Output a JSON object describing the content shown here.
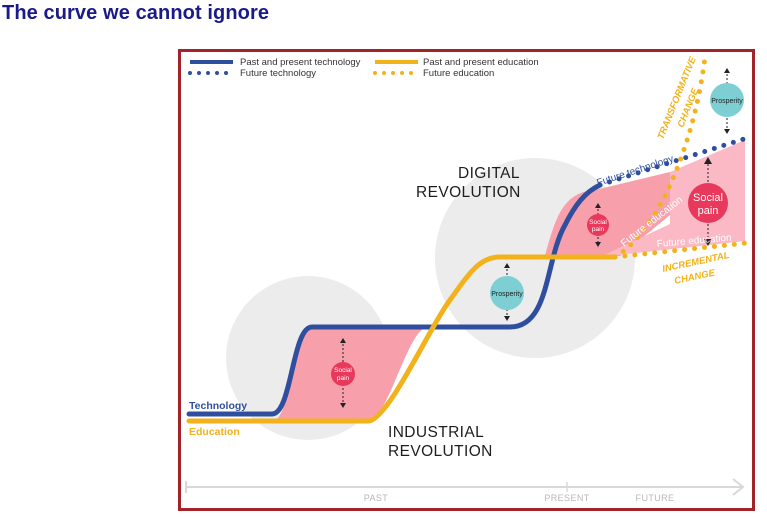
{
  "page": {
    "title": "The curve we cannot ignore"
  },
  "legend": {
    "past_tech": "Past and present technology",
    "future_tech": "Future technology",
    "past_edu": "Past and present education",
    "future_edu": "Future education"
  },
  "labels": {
    "digital": [
      "DIGITAL",
      "REVOLUTION"
    ],
    "industrial": [
      "INDUSTRIAL",
      "REVOLUTION"
    ],
    "technology": "Technology",
    "education": "Education",
    "social_pain": [
      "Social",
      "pain"
    ],
    "prosperity": "Prosperity",
    "future_technology": "Future technology",
    "future_education": "Future education",
    "transformative": [
      "TRANSFORMATIVE",
      "CHANGE"
    ],
    "incremental": [
      "INCREMENTAL",
      "CHANGE"
    ]
  },
  "axis": {
    "past": "PAST",
    "present": "PRESENT",
    "future": "FUTURE"
  },
  "colors": {
    "technology": "#2f4f9e",
    "education": "#f2b21b",
    "social_pain_fill": "#f7a0ac",
    "social_pain_fill_future": "#fbb9c5",
    "social_pain_bubble": "#e8385b",
    "prosperity_bubble": "#7ecfd3",
    "revolution_circle": "#ececec",
    "frame": "#a3232a",
    "title": "#1a1a8c"
  }
}
